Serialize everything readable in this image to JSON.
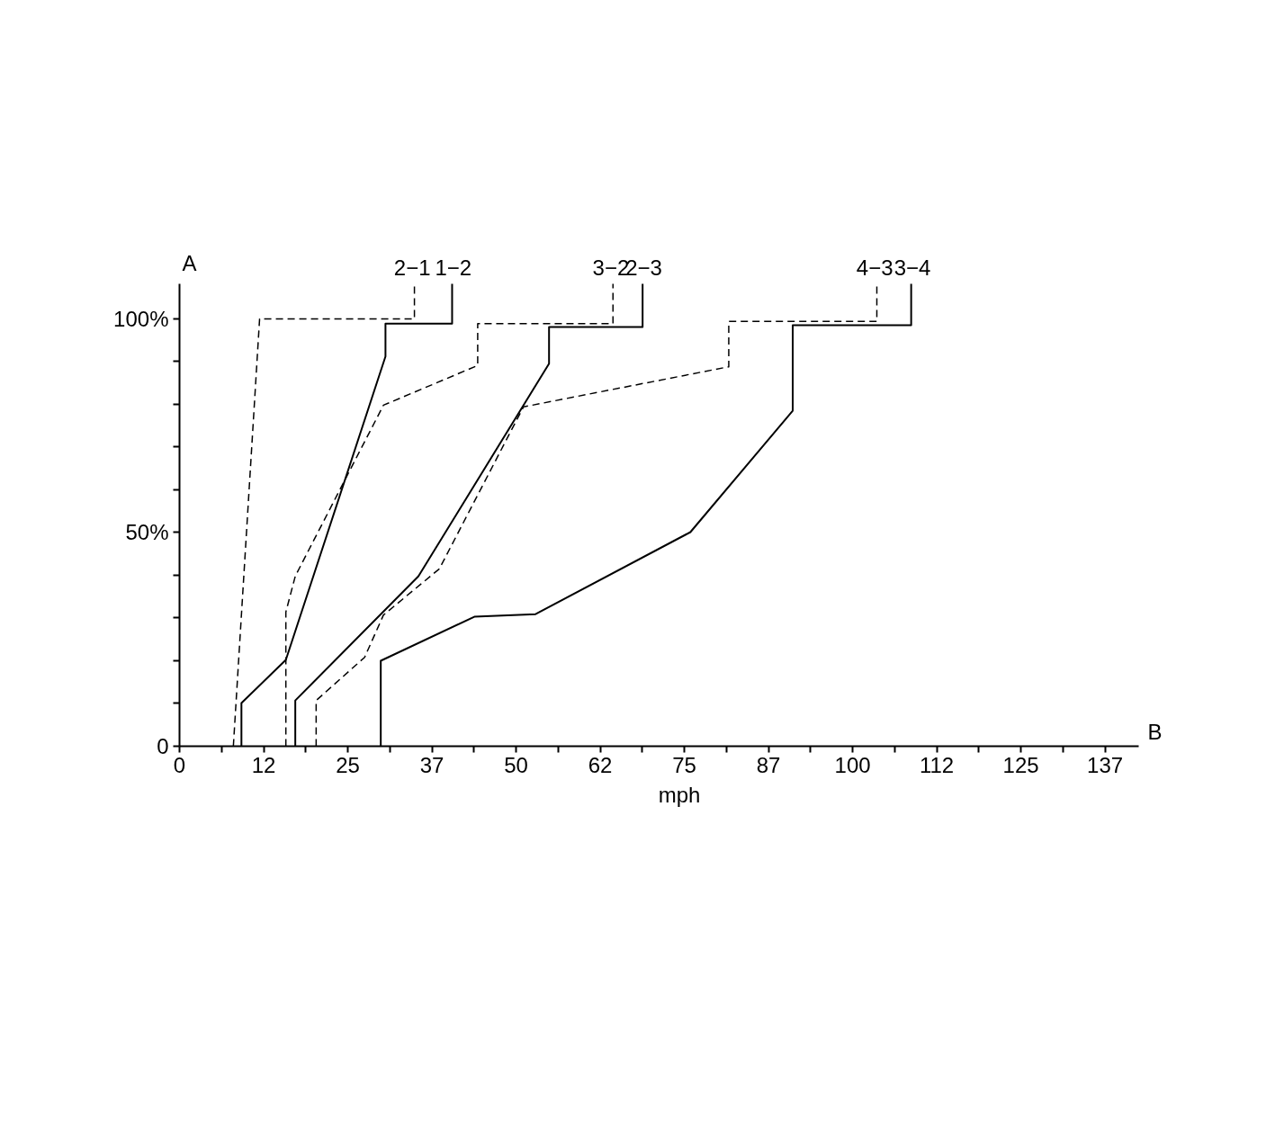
{
  "chart_data": {
    "type": "line",
    "xlabel": "mph",
    "annotations": [
      "A",
      "B"
    ],
    "xlim": [
      0,
      142.5
    ],
    "ylim": [
      0,
      108.2
    ],
    "xticks": [
      0,
      {
        "value": 6.25,
        "label": null
      },
      {
        "value": 12.5,
        "label": "12"
      },
      {
        "value": 18.75,
        "label": null
      },
      25,
      {
        "value": 31.25,
        "label": null
      },
      {
        "value": 37.5,
        "label": "37"
      },
      {
        "value": 43.75,
        "label": null
      },
      50,
      {
        "value": 56.25,
        "label": null
      },
      {
        "value": 62.5,
        "label": "62"
      },
      {
        "value": 68.75,
        "label": null
      },
      75,
      {
        "value": 81.25,
        "label": null
      },
      {
        "value": 87.5,
        "label": "87"
      },
      {
        "value": 93.75,
        "label": null
      },
      100,
      {
        "value": 106.25,
        "label": null
      },
      {
        "value": 112.5,
        "label": "112"
      },
      {
        "value": 118.75,
        "label": null
      },
      125,
      {
        "value": 131.25,
        "label": null
      },
      {
        "value": 137.5,
        "label": "137"
      }
    ],
    "yticks": [
      0,
      {
        "value": 10,
        "label": null
      },
      {
        "value": 20,
        "label": null
      },
      {
        "value": 30,
        "label": null
      },
      {
        "value": 40,
        "label": null
      },
      {
        "value": 50,
        "label": "50%"
      },
      {
        "value": 60,
        "label": null
      },
      {
        "value": 70,
        "label": null
      },
      {
        "value": 80,
        "label": null
      },
      {
        "value": 90,
        "label": null
      },
      {
        "value": 100,
        "label": "100%"
      }
    ],
    "grid": false,
    "legend": false,
    "marker": "none",
    "series": [
      {
        "name": "2−1",
        "color": "#000000",
        "line_style": "dashed",
        "x": [
          8.0,
          11.9,
          34.9,
          34.9
        ],
        "values": [
          0,
          100,
          100,
          108.2
        ]
      },
      {
        "name": "1−2",
        "color": "#000000",
        "line_style": "solid",
        "x": [
          9.2,
          9.2,
          15.8,
          30.6,
          30.6,
          40.5,
          40.5
        ],
        "values": [
          0,
          10.1,
          20.2,
          91.2,
          98.9,
          98.9,
          108.2
        ]
      },
      {
        "name": "3−2",
        "color": "#000000",
        "line_style": "dashed",
        "x": [
          15.8,
          15.8,
          17.2,
          30.3,
          44.3,
          44.3,
          64.4,
          64.4
        ],
        "values": [
          0,
          31.4,
          39.8,
          79.8,
          89.1,
          98.9,
          98.9,
          108.2
        ]
      },
      {
        "name": "2−3",
        "color": "#000000",
        "line_style": "solid",
        "x": [
          17.2,
          17.2,
          35.5,
          54.9,
          54.9,
          68.8,
          68.8
        ],
        "values": [
          0,
          10.7,
          39.8,
          89.5,
          98.1,
          98.1,
          108.2
        ]
      },
      {
        "name": "4−3",
        "color": "#000000",
        "line_style": "dashed",
        "x": [
          20.3,
          20.3,
          27.5,
          30.3,
          38.6,
          51.1,
          81.6,
          81.6,
          103.6,
          103.6
        ],
        "values": [
          0,
          10.7,
          20.8,
          30.7,
          41.5,
          79.4,
          88.8,
          99.4,
          99.4,
          108.2
        ]
      },
      {
        "name": "3−4",
        "color": "#000000",
        "line_style": "solid",
        "x": [
          29.9,
          29.9,
          43.8,
          52.9,
          75.9,
          91.1,
          91.1,
          108.7,
          108.7
        ],
        "values": [
          0,
          20,
          30.3,
          30.9,
          50.1,
          78.5,
          98.5,
          98.5,
          108.2
        ]
      }
    ]
  }
}
